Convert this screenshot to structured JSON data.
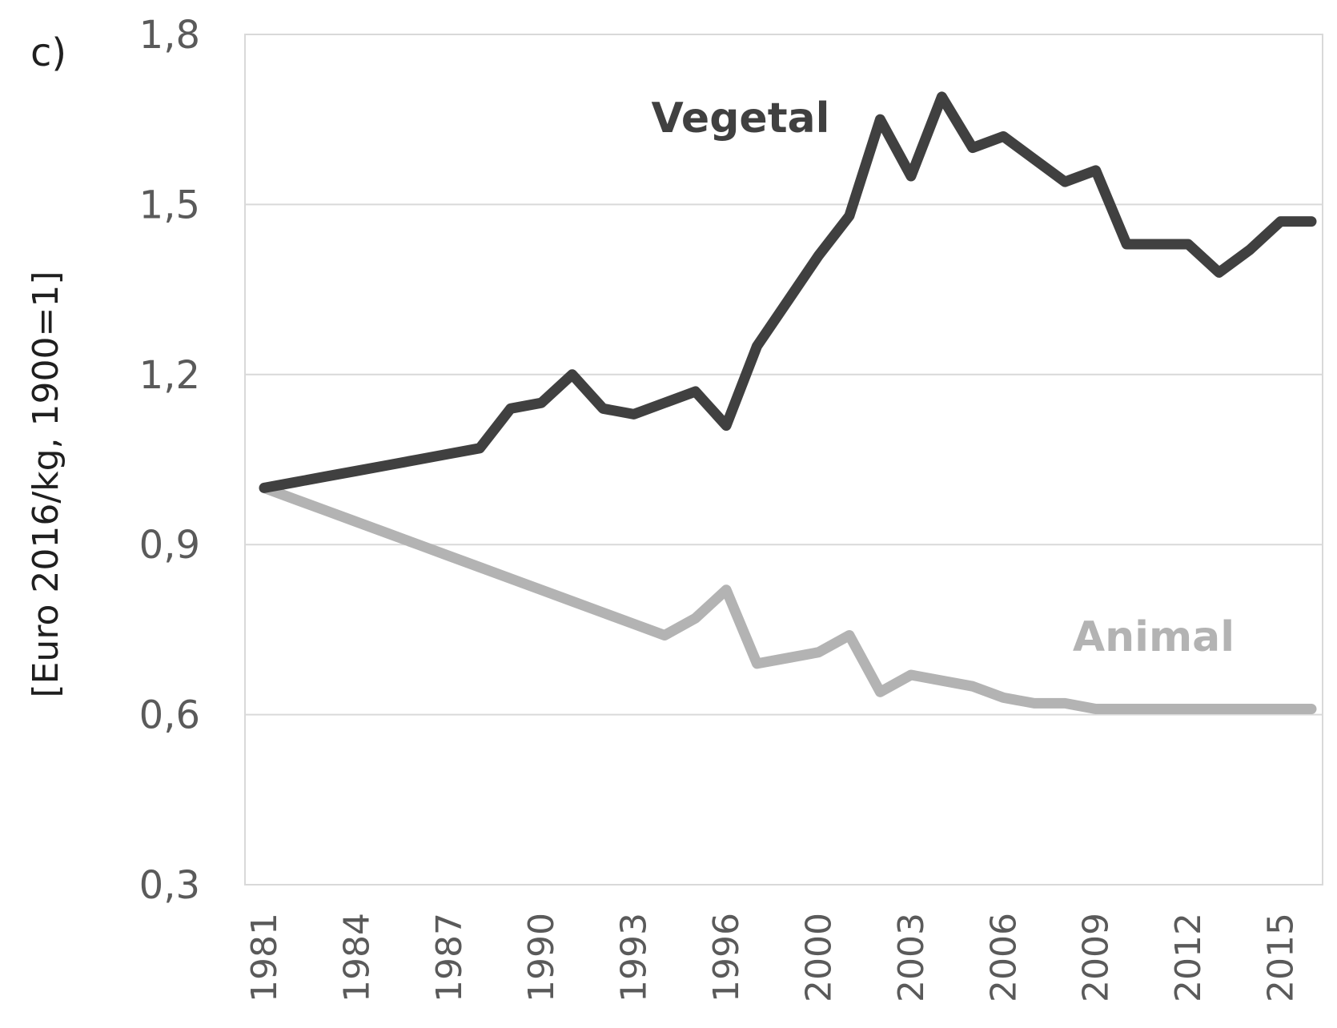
{
  "chart_data": {
    "type": "line",
    "panel_label": "c)",
    "title": "",
    "xlabel": "",
    "ylabel": "[Euro 2016/kg, 1900=1]",
    "ylim": [
      0.3,
      1.8
    ],
    "yticks": [
      0.3,
      0.6,
      0.9,
      1.2,
      1.5,
      1.8
    ],
    "ytick_labels": [
      "0,3",
      "0,6",
      "0,9",
      "1,2",
      "1,5",
      "1,8"
    ],
    "x_categories": [
      "1981",
      "1982",
      "1983",
      "1984",
      "1985",
      "1986",
      "1987",
      "1988",
      "1989",
      "1990",
      "1991",
      "1992",
      "1993",
      "1994",
      "1995",
      "1996",
      "1998",
      "1999",
      "2000",
      "2001",
      "2002",
      "2003",
      "2004",
      "2005",
      "2006",
      "2007",
      "2008",
      "2009",
      "2010",
      "2011",
      "2012",
      "2013",
      "2014",
      "2015",
      "2016"
    ],
    "xtick_labels": [
      "1981",
      "1984",
      "1987",
      "1990",
      "1993",
      "1996",
      "2000",
      "2003",
      "2006",
      "2009",
      "2012",
      "2015"
    ],
    "grid": "horizontal",
    "series": [
      {
        "name": "Vegetal",
        "color": "#404040",
        "values": [
          1.0,
          1.01,
          1.02,
          1.03,
          1.04,
          1.05,
          1.06,
          1.07,
          1.14,
          1.15,
          1.2,
          1.14,
          1.13,
          1.15,
          1.17,
          1.11,
          1.25,
          1.33,
          1.41,
          1.48,
          1.65,
          1.55,
          1.69,
          1.6,
          1.62,
          1.58,
          1.54,
          1.56,
          1.43,
          1.43,
          1.43,
          1.38,
          1.42,
          1.47,
          1.47
        ]
      },
      {
        "name": "Animal",
        "color": "#b3b3b3",
        "values": [
          1.0,
          0.98,
          0.96,
          0.94,
          0.92,
          0.9,
          0.88,
          0.86,
          0.84,
          0.82,
          0.8,
          0.78,
          0.76,
          0.74,
          0.77,
          0.82,
          0.69,
          0.7,
          0.71,
          0.74,
          0.64,
          0.67,
          0.66,
          0.65,
          0.63,
          0.62,
          0.62,
          0.61,
          0.61,
          0.61,
          0.61,
          0.61,
          0.61,
          0.61,
          0.61
        ]
      }
    ]
  },
  "style": {
    "grid_color": "#d9d9d9",
    "tick_text_color": "#5a5a5a",
    "vegetal_color": "#404040",
    "animal_color": "#b3b3b3"
  }
}
